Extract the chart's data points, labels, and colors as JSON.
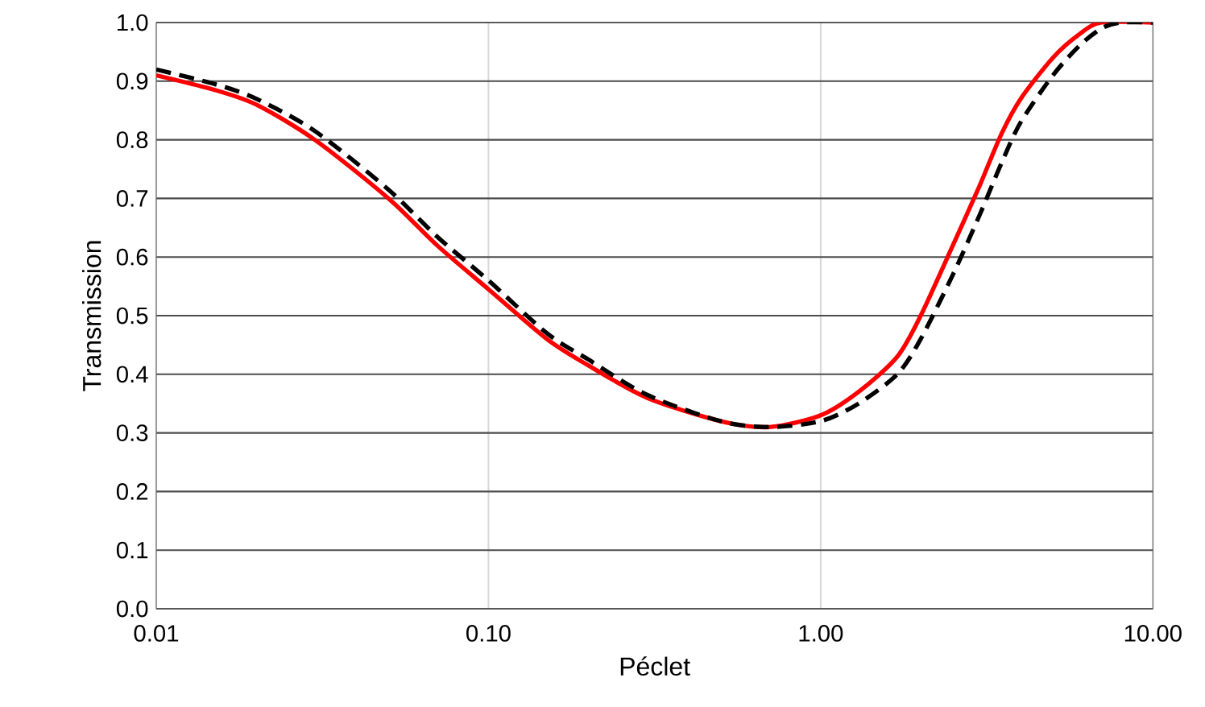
{
  "chart_data": {
    "type": "line",
    "xlabel": "Péclet",
    "ylabel": "Transmission",
    "log": "x",
    "grid": true,
    "xlim": [
      0.01,
      10
    ],
    "xticks": [
      0.01,
      {
        "value": 0.1,
        "label": "0.10"
      },
      {
        "value": 1,
        "label": "1.00"
      },
      {
        "value": 10,
        "label": "10.00"
      }
    ],
    "ylim": [
      0,
      1
    ],
    "yticks": [
      {
        "value": 0,
        "label": "0.0"
      },
      0.1,
      0.2,
      0.3,
      0.4,
      0.5,
      0.6,
      0.7,
      0.8,
      0.9,
      {
        "value": 1,
        "label": "1.0"
      }
    ],
    "series": [
      {
        "color": "#ff0000",
        "line_style": "solid",
        "x": [
          0.01,
          0.015,
          0.02,
          0.03,
          0.05,
          0.07,
          0.1,
          0.15,
          0.2,
          0.3,
          0.5,
          0.7,
          1.0,
          1.3,
          1.7,
          2.0,
          2.5,
          3,
          3.5,
          4,
          5,
          6,
          7,
          10
        ],
        "values": [
          0.91,
          0.885,
          0.86,
          0.8,
          0.7,
          0.62,
          0.545,
          0.46,
          0.415,
          0.36,
          0.32,
          0.31,
          0.33,
          0.37,
          0.43,
          0.5,
          0.62,
          0.72,
          0.81,
          0.87,
          0.94,
          0.98,
          1.0,
          1.0
        ]
      },
      {
        "color": "#000000",
        "line_style": "dashed",
        "x": [
          0.01,
          0.015,
          0.02,
          0.03,
          0.05,
          0.07,
          0.1,
          0.15,
          0.2,
          0.3,
          0.5,
          0.7,
          1.0,
          1.3,
          1.7,
          2.0,
          2.5,
          3,
          3.5,
          4,
          5,
          6,
          7,
          8,
          10
        ],
        "values": [
          0.92,
          0.895,
          0.87,
          0.815,
          0.715,
          0.635,
          0.56,
          0.47,
          0.425,
          0.365,
          0.32,
          0.31,
          0.32,
          0.35,
          0.4,
          0.46,
          0.57,
          0.67,
          0.76,
          0.83,
          0.91,
          0.96,
          0.99,
          1.0,
          1.0
        ]
      }
    ]
  }
}
